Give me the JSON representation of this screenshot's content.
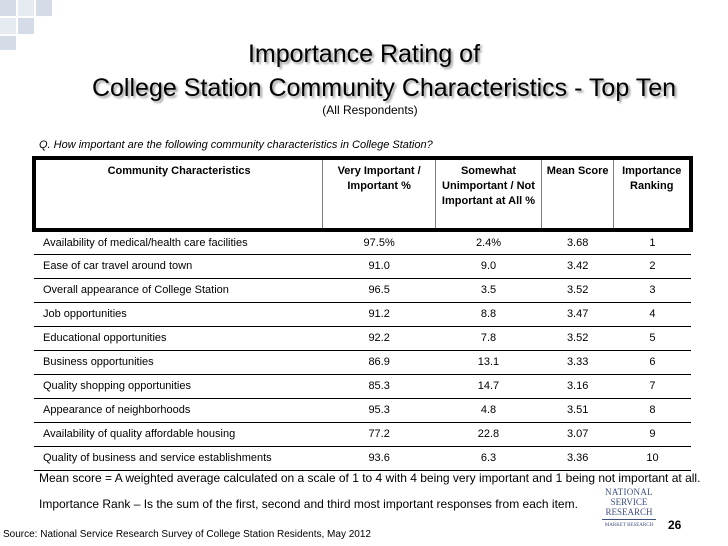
{
  "title_line1": "Importance Rating of",
  "title_line2": "College Station Community Characteristics - Top Ten",
  "subtitle": "(All Respondents)",
  "question": "Q. How important are the following community characteristics in College Station?",
  "table": {
    "headers": {
      "characteristic": "Community Characteristics",
      "very_important": "Very Important / Important %",
      "somewhat_unimportant": "Somewhat Unimportant / Not Important at All %",
      "mean_score": "Mean Score",
      "ranking": "Importance Ranking"
    },
    "rows": [
      {
        "name": "Availability of medical/health care facilities",
        "very": "97.5%",
        "somewhat": "2.4%",
        "mean": "3.68",
        "rank": "1"
      },
      {
        "name": "Ease of car travel around town",
        "very": "91.0",
        "somewhat": "9.0",
        "mean": "3.42",
        "rank": "2"
      },
      {
        "name": "Overall appearance of College Station",
        "very": "96.5",
        "somewhat": "3.5",
        "mean": "3.52",
        "rank": "3"
      },
      {
        "name": "Job opportunities",
        "very": "91.2",
        "somewhat": "8.8",
        "mean": "3.47",
        "rank": "4"
      },
      {
        "name": "Educational opportunities",
        "very": "92.2",
        "somewhat": "7.8",
        "mean": "3.52",
        "rank": "5"
      },
      {
        "name": "Business opportunities",
        "very": "86.9",
        "somewhat": "13.1",
        "mean": "3.33",
        "rank": "6"
      },
      {
        "name": "Quality shopping opportunities",
        "very": "85.3",
        "somewhat": "14.7",
        "mean": "3.16",
        "rank": "7"
      },
      {
        "name": "Appearance of neighborhoods",
        "very": "95.3",
        "somewhat": "4.8",
        "mean": "3.51",
        "rank": "8"
      },
      {
        "name": "Availability of quality affordable housing",
        "very": "77.2",
        "somewhat": "22.8",
        "mean": "3.07",
        "rank": "9"
      },
      {
        "name": "Quality of business and service establishments",
        "very": "93.6",
        "somewhat": "6.3",
        "mean": "3.36",
        "rank": "10"
      }
    ]
  },
  "note_mean": "Mean score = A weighted average calculated on a scale of 1 to 4 with 4 being very important and 1 being not important at all.",
  "note_rank": "Importance Rank – Is the sum of the first, second and third most important responses from each item.",
  "source": "Source: National Service Research Survey of College Station Residents, May 2012",
  "logo": {
    "line1": "NATIONAL",
    "line2": "SERVICE",
    "line3": "RESEARCH",
    "line4": "MARKET RESEARCH"
  },
  "page_number": "26",
  "colors": {
    "corner_squares": "#d5dce8",
    "logo": "#3f4f80",
    "title_shadow": "#9a9a9a"
  }
}
